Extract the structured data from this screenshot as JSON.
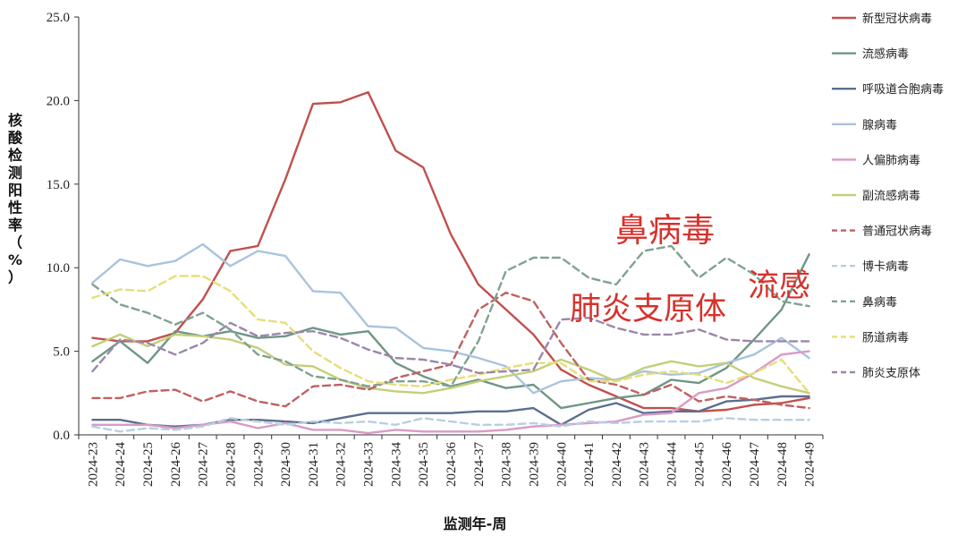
{
  "chart_data": {
    "type": "line",
    "xlabel": "监测年-周",
    "ylabel": "核酸检测阳性率（%）",
    "ylim": [
      0,
      25
    ],
    "yticks": [
      "0.0",
      "5.0",
      "10.0",
      "15.0",
      "20.0",
      "25.0"
    ],
    "categories": [
      "2024-23",
      "2024-24",
      "2024-25",
      "2024-26",
      "2024-27",
      "2024-28",
      "2024-29",
      "2024-30",
      "2024-31",
      "2024-32",
      "2024-33",
      "2024-34",
      "2024-35",
      "2024-36",
      "2024-37",
      "2024-38",
      "2024-39",
      "2024-40",
      "2024-41",
      "2024-42",
      "2024-43",
      "2024-44",
      "2024-45",
      "2024-46",
      "2024-47",
      "2024-48",
      "2024-49"
    ],
    "legend_position": "right",
    "grid": false,
    "series": [
      {
        "name": "新型冠状病毒",
        "color": "#c0504d",
        "dash": false,
        "values": [
          5.8,
          5.6,
          5.6,
          6.1,
          8.1,
          11.0,
          11.3,
          15.3,
          19.8,
          19.9,
          20.5,
          17.0,
          16.0,
          12.0,
          9.0,
          7.5,
          6.0,
          3.9,
          3.0,
          2.3,
          1.6,
          1.6,
          1.4,
          1.5,
          1.8,
          1.9,
          2.2
        ]
      },
      {
        "name": "流感病毒",
        "color": "#6f9685",
        "dash": false,
        "values": [
          4.4,
          5.6,
          4.3,
          6.2,
          5.9,
          6.2,
          5.8,
          5.9,
          6.4,
          6.0,
          6.2,
          4.3,
          3.5,
          2.9,
          3.3,
          2.8,
          3.0,
          1.6,
          1.9,
          2.2,
          2.4,
          3.3,
          3.1,
          4.0,
          5.7,
          7.5,
          10.8
        ]
      },
      {
        "name": "呼吸道合胞病毒",
        "color": "#5b6f8f",
        "dash": false,
        "values": [
          0.9,
          0.9,
          0.6,
          0.5,
          0.6,
          0.9,
          0.9,
          0.8,
          0.7,
          1.0,
          1.3,
          1.3,
          1.3,
          1.3,
          1.4,
          1.4,
          1.6,
          0.6,
          1.5,
          1.9,
          1.3,
          1.4,
          1.4,
          2.0,
          2.1,
          2.3,
          2.3
        ]
      },
      {
        "name": "腺病毒",
        "color": "#a9c4dc",
        "dash": false,
        "values": [
          9.1,
          10.5,
          10.1,
          10.4,
          11.4,
          10.1,
          11.0,
          10.7,
          8.6,
          8.5,
          6.5,
          6.4,
          5.2,
          5.0,
          4.6,
          4.1,
          2.5,
          3.2,
          3.4,
          3.3,
          3.8,
          3.6,
          3.7,
          4.3,
          4.8,
          5.8,
          4.6
        ]
      },
      {
        "name": "人偏肺病毒",
        "color": "#d99ac5",
        "dash": false,
        "values": [
          0.6,
          0.6,
          0.6,
          0.4,
          0.6,
          0.8,
          0.4,
          0.7,
          0.3,
          0.3,
          0.1,
          0.3,
          0.2,
          0.2,
          0.2,
          0.3,
          0.5,
          0.6,
          0.7,
          0.8,
          1.2,
          1.3,
          2.5,
          2.8,
          3.7,
          4.8,
          5.0
        ]
      },
      {
        "name": "副流感病毒",
        "color": "#c3cf78",
        "dash": false,
        "values": [
          5.3,
          6.0,
          5.3,
          6.0,
          5.9,
          5.7,
          5.2,
          4.2,
          4.1,
          3.3,
          2.8,
          2.6,
          2.5,
          2.8,
          3.2,
          3.5,
          3.8,
          4.5,
          3.9,
          3.2,
          4.0,
          4.4,
          4.1,
          4.3,
          3.4,
          2.9,
          2.5
        ]
      },
      {
        "name": "普通冠状病毒",
        "color": "#c06060",
        "dash": true,
        "values": [
          2.2,
          2.2,
          2.6,
          2.7,
          2.0,
          2.6,
          2.0,
          1.7,
          2.9,
          3.0,
          2.7,
          3.4,
          3.8,
          4.2,
          7.5,
          8.5,
          8.0,
          5.5,
          3.3,
          3.0,
          2.4,
          3.0,
          2.0,
          2.3,
          2.1,
          1.8,
          1.6
        ]
      },
      {
        "name": "博卡病毒",
        "color": "#b8cfe2",
        "dash": true,
        "values": [
          0.5,
          0.2,
          0.4,
          0.3,
          0.5,
          1.0,
          0.8,
          0.6,
          0.8,
          0.7,
          0.8,
          0.6,
          1.0,
          0.8,
          0.6,
          0.6,
          0.7,
          0.5,
          0.8,
          0.7,
          0.8,
          0.8,
          0.8,
          1.0,
          0.9,
          0.9,
          0.9
        ]
      },
      {
        "name": "鼻病毒",
        "color": "#80a290",
        "dash": true,
        "values": [
          9.0,
          7.8,
          7.3,
          6.6,
          7.3,
          6.3,
          4.8,
          4.4,
          3.5,
          3.3,
          2.9,
          3.2,
          3.2,
          2.9,
          5.6,
          9.8,
          10.6,
          10.6,
          9.4,
          9.0,
          11.0,
          11.3,
          9.4,
          10.6,
          9.6,
          8.0,
          7.7
        ]
      },
      {
        "name": "肠道病毒",
        "color": "#e6de7a",
        "dash": true,
        "values": [
          8.2,
          8.7,
          8.6,
          9.5,
          9.5,
          8.6,
          6.9,
          6.7,
          5.0,
          4.0,
          3.2,
          3.0,
          2.9,
          3.3,
          3.6,
          4.0,
          4.3,
          4.3,
          3.2,
          3.2,
          3.6,
          3.8,
          3.6,
          3.1,
          3.7,
          4.5,
          2.5
        ]
      },
      {
        "name": "肺炎支原体",
        "color": "#9c87a8",
        "dash": true,
        "values": [
          3.8,
          5.7,
          5.5,
          4.8,
          5.5,
          6.7,
          5.9,
          6.1,
          6.2,
          5.8,
          5.1,
          4.6,
          4.5,
          4.2,
          3.7,
          3.8,
          3.9,
          6.9,
          7.0,
          6.4,
          6.0,
          6.0,
          6.3,
          5.7,
          5.6,
          5.6,
          5.6
        ]
      }
    ]
  },
  "overlays": {
    "rhinovirus": "鼻病毒",
    "mycoplasma": "肺炎支原体",
    "influenza": "流感"
  }
}
